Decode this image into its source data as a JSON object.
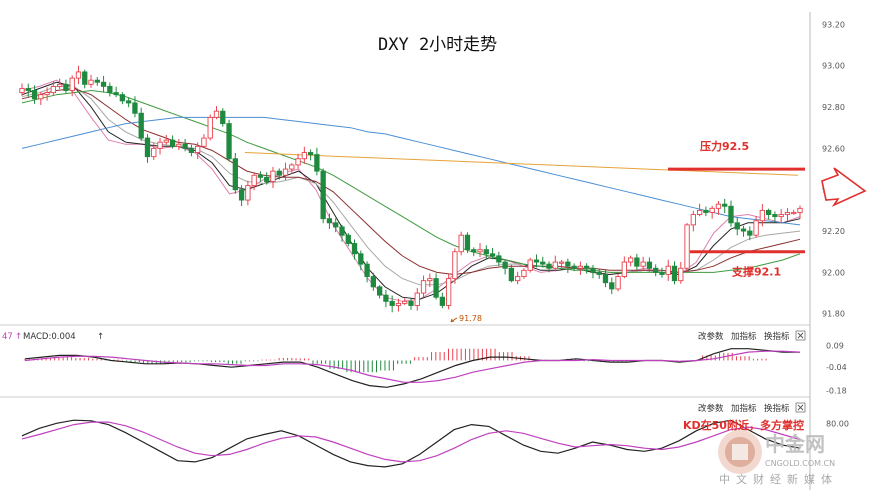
{
  "chart_data": [
    {
      "type": "candlestick",
      "title": "DXY 2小时走势",
      "y_ticks": [
        "93.20",
        "93.00",
        "92.80",
        "92.60",
        "92.40",
        "92.20",
        "92.00",
        "91.80"
      ],
      "ylim": [
        91.76,
        93.26
      ],
      "annotations": {
        "resistance_label": "压力92.5",
        "resistance_value": 92.5,
        "support_label": "支撑92.1",
        "support_value": 92.1,
        "low_label": "91.78",
        "low_value": 91.78
      },
      "closes": [
        92.89,
        92.88,
        92.84,
        92.86,
        92.87,
        92.9,
        92.91,
        92.88,
        92.94,
        92.97,
        92.91,
        92.93,
        92.92,
        92.9,
        92.87,
        92.86,
        92.83,
        92.82,
        92.77,
        92.65,
        92.56,
        92.6,
        92.63,
        92.64,
        92.61,
        92.62,
        92.6,
        92.58,
        92.61,
        92.65,
        92.75,
        92.78,
        92.72,
        92.55,
        92.4,
        92.35,
        92.42,
        92.47,
        92.46,
        92.44,
        92.49,
        92.47,
        92.5,
        92.52,
        92.55,
        92.58,
        92.57,
        92.49,
        92.26,
        92.24,
        92.22,
        92.18,
        92.14,
        92.09,
        92.04,
        91.98,
        91.93,
        91.89,
        91.86,
        91.84,
        91.85,
        91.86,
        91.84,
        91.9,
        91.96,
        91.97,
        91.88,
        91.84,
        91.97,
        92.1,
        92.18,
        92.11,
        92.1,
        92.11,
        92.09,
        92.08,
        92.05,
        92.02,
        91.96,
        91.98,
        92.01,
        92.06,
        92.05,
        92.04,
        92.02,
        92.05,
        92.05,
        92.03,
        92.02,
        92.03,
        92.02,
        92.0,
        91.99,
        91.95,
        91.92,
        91.98,
        92.05,
        92.07,
        92.03,
        92.05,
        92.02,
        92.0,
        91.99,
        92.03,
        91.96,
        92.02,
        92.23,
        92.28,
        92.3,
        92.29,
        92.31,
        92.33,
        92.32,
        92.24,
        92.21,
        92.2,
        92.18,
        92.25,
        92.3,
        92.28,
        92.27,
        92.28,
        92.29,
        92.29,
        92.31
      ],
      "ma_series": [
        {
          "color": "#e07fb0",
          "values": [
            92.88,
            92.9,
            92.93,
            92.87,
            92.75,
            92.64,
            92.62,
            92.62,
            92.6,
            92.61,
            92.58,
            92.5,
            92.38,
            92.4,
            92.45,
            92.48,
            92.5,
            92.4,
            92.23,
            92.1,
            91.97,
            91.88,
            91.86,
            91.87,
            91.92,
            91.99,
            92.05,
            92.08,
            92.06,
            92.03,
            92.0,
            92.01,
            92.03,
            92.0,
            91.99,
            92.0,
            92.02,
            92.0,
            91.99,
            92.05,
            92.19,
            92.27,
            92.28,
            92.26,
            92.24,
            92.27
          ]
        },
        {
          "color": "#222222",
          "values": [
            92.86,
            92.89,
            92.92,
            92.9,
            92.8,
            92.68,
            92.63,
            92.62,
            92.61,
            92.61,
            92.59,
            92.53,
            92.42,
            92.4,
            92.43,
            92.46,
            92.49,
            92.43,
            92.29,
            92.15,
            92.02,
            91.93,
            91.88,
            91.87,
            91.9,
            91.96,
            92.03,
            92.07,
            92.06,
            92.04,
            92.01,
            92.01,
            92.02,
            92.0,
            91.99,
            92.0,
            92.01,
            92.0,
            91.99,
            92.03,
            92.13,
            92.21,
            92.24,
            92.24,
            92.24,
            92.26
          ]
        },
        {
          "color": "#a8a8a8",
          "values": [
            92.85,
            92.87,
            92.9,
            92.9,
            92.84,
            92.74,
            92.68,
            92.64,
            92.62,
            92.61,
            92.6,
            92.56,
            92.48,
            92.44,
            92.43,
            92.44,
            92.46,
            92.43,
            92.34,
            92.23,
            92.12,
            92.03,
            91.97,
            91.94,
            91.94,
            91.96,
            92.0,
            92.03,
            92.04,
            92.04,
            92.03,
            92.02,
            92.02,
            92.01,
            92.0,
            92.0,
            92.01,
            92.0,
            92.0,
            92.01,
            92.06,
            92.12,
            92.16,
            92.18,
            92.19,
            92.2
          ]
        },
        {
          "color": "#8b2e2e",
          "values": [
            92.84,
            92.86,
            92.88,
            92.89,
            92.86,
            92.8,
            92.74,
            92.69,
            92.66,
            92.63,
            92.62,
            92.59,
            92.54,
            92.49,
            92.47,
            92.46,
            92.46,
            92.44,
            92.39,
            92.31,
            92.23,
            92.15,
            92.08,
            92.03,
            92.0,
            91.99,
            92.0,
            92.02,
            92.03,
            92.03,
            92.03,
            92.03,
            92.02,
            92.02,
            92.01,
            92.01,
            92.01,
            92.01,
            92.0,
            92.01,
            92.03,
            92.07,
            92.1,
            92.12,
            92.14,
            92.16
          ]
        },
        {
          "color": "#3f9a3f",
          "values": [
            92.82,
            92.84,
            92.86,
            92.87,
            92.88,
            92.87,
            92.85,
            92.82,
            92.79,
            92.76,
            92.73,
            92.7,
            92.67,
            92.63,
            92.6,
            92.57,
            92.54,
            92.51,
            92.47,
            92.42,
            92.37,
            92.32,
            92.27,
            92.22,
            92.17,
            92.13,
            92.1,
            92.08,
            92.06,
            92.04,
            92.03,
            92.02,
            92.01,
            92.01,
            92.0,
            92.0,
            92.0,
            92.0,
            92.0,
            92.0,
            92.0,
            92.01,
            92.02,
            92.04,
            92.06,
            92.09
          ]
        },
        {
          "color": "#4a8fd4",
          "values": [
            92.6,
            92.62,
            92.64,
            92.66,
            92.68,
            92.7,
            92.72,
            92.73,
            92.74,
            92.75,
            92.75,
            92.75,
            92.75,
            92.75,
            92.75,
            92.74,
            92.73,
            92.72,
            92.71,
            92.7,
            92.68,
            92.67,
            92.65,
            92.63,
            92.61,
            92.59,
            92.57,
            92.55,
            92.53,
            92.51,
            92.49,
            92.47,
            92.45,
            92.43,
            92.41,
            92.39,
            92.37,
            92.35,
            92.33,
            92.31,
            92.29,
            92.27,
            92.26,
            92.25,
            92.24,
            92.23
          ]
        },
        {
          "color": "#e8a23a",
          "values": [
            92.58,
            92.57,
            92.56,
            92.55,
            92.54,
            92.53,
            92.52,
            92.51,
            92.5,
            92.49,
            92.48,
            92.47
          ]
        }
      ]
    },
    {
      "type": "macd",
      "label": "47",
      "macd_label": "MACD:0.004",
      "buttons": [
        "改参数",
        "加指标",
        "换指标"
      ],
      "y_ticks": [
        "0.09",
        "-0.04",
        "-0.18"
      ],
      "ylim": [
        -0.2,
        0.11
      ],
      "dif": [
        0.01,
        0.02,
        0.03,
        0.03,
        0.02,
        0.0,
        -0.01,
        -0.02,
        -0.02,
        -0.015,
        -0.02,
        -0.03,
        -0.04,
        -0.03,
        -0.02,
        -0.01,
        -0.01,
        -0.04,
        -0.08,
        -0.12,
        -0.15,
        -0.16,
        -0.14,
        -0.11,
        -0.07,
        -0.03,
        0.0,
        0.02,
        0.02,
        0.01,
        0.0,
        0.0,
        0.01,
        0.0,
        -0.01,
        -0.01,
        0.0,
        0.0,
        -0.01,
        0.0,
        0.04,
        0.07,
        0.07,
        0.06,
        0.05,
        0.05
      ],
      "dea": [
        0.0,
        0.01,
        0.02,
        0.025,
        0.025,
        0.02,
        0.01,
        0.0,
        -0.01,
        -0.015,
        -0.02,
        -0.02,
        -0.025,
        -0.03,
        -0.03,
        -0.02,
        -0.02,
        -0.025,
        -0.04,
        -0.06,
        -0.09,
        -0.11,
        -0.13,
        -0.13,
        -0.12,
        -0.1,
        -0.07,
        -0.05,
        -0.03,
        -0.01,
        0.0,
        0.0,
        0.0,
        0.005,
        0.0,
        0.0,
        0.0,
        0.0,
        -0.005,
        0.0,
        0.01,
        0.03,
        0.05,
        0.055,
        0.055,
        0.05
      ],
      "hist": [
        0.01,
        0.015,
        0.02,
        0.015,
        0.01,
        0.005,
        -0.01,
        -0.02,
        -0.02,
        -0.01,
        -0.005,
        -0.01,
        -0.02,
        -0.005,
        0.005,
        0.015,
        0.012,
        -0.02,
        -0.05,
        -0.07,
        -0.07,
        -0.06,
        -0.02,
        0.02,
        0.05,
        0.07,
        0.07,
        0.07,
        0.05,
        0.025,
        0.005,
        0.0,
        0.01,
        -0.005,
        -0.01,
        -0.01,
        0.0,
        0.0,
        -0.005,
        0.0,
        0.03,
        0.045,
        0.025,
        0.01,
        0.0,
        0.0
      ]
    },
    {
      "type": "kd",
      "buttons": [
        "改参数",
        "加指标",
        "换指标"
      ],
      "y_ticks": [
        "80.00"
      ],
      "annotation": "KD在50附近，多方掌控",
      "ylim": [
        5,
        95
      ],
      "k": [
        60,
        72,
        80,
        85,
        84,
        78,
        65,
        50,
        35,
        20,
        18,
        25,
        40,
        55,
        62,
        68,
        60,
        45,
        30,
        18,
        12,
        10,
        15,
        30,
        50,
        70,
        78,
        75,
        60,
        45,
        35,
        32,
        40,
        50,
        45,
        38,
        35,
        40,
        52,
        68,
        80,
        85,
        70,
        55,
        45,
        40
      ],
      "d": [
        55,
        62,
        70,
        78,
        82,
        82,
        76,
        66,
        54,
        42,
        32,
        28,
        30,
        38,
        48,
        56,
        60,
        58,
        50,
        40,
        30,
        22,
        18,
        20,
        28,
        40,
        54,
        64,
        68,
        64,
        56,
        48,
        42,
        44,
        46,
        44,
        40,
        38,
        42,
        50,
        60,
        70,
        74,
        70,
        62,
        54
      ]
    }
  ],
  "watermark": {
    "brand": "中金网",
    "domain": "CNGOLD.COM.CN",
    "slogan": "中文财经新媒体"
  },
  "colors": {
    "up": "#e8434e",
    "down": "#1f8a3f",
    "resistance_line": "#e0302d",
    "support_line": "#e0302d",
    "arrow": "#e0302d",
    "macd_hist_up": "#e8434e",
    "macd_hist_down": "#1f8a3f"
  },
  "icons": [
    "up-arrow-icon",
    "right-arrow-icon",
    "close-icon",
    "logo-coin-icon"
  ]
}
